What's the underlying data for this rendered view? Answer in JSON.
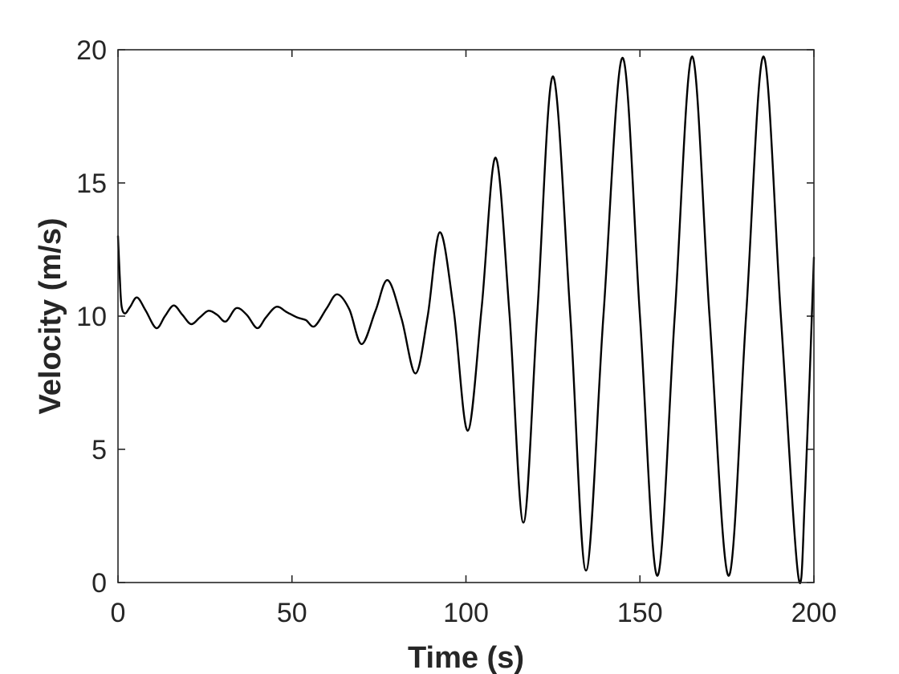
{
  "chart_data": {
    "type": "line",
    "title": "",
    "xlabel": "Time (s)",
    "ylabel": "Velocity (m/s)",
    "xlim": [
      0,
      200
    ],
    "ylim": [
      0,
      20
    ],
    "xticks": [
      0,
      50,
      100,
      150,
      200
    ],
    "yticks": [
      0,
      5,
      10,
      15,
      20
    ],
    "x_tick_labels": [
      "0",
      "50",
      "100",
      "150",
      "200"
    ],
    "y_tick_labels": [
      "0",
      "5",
      "10",
      "15",
      "20"
    ],
    "grid": false,
    "legend": "none",
    "line_color": "#000000",
    "axis_color": "#262626",
    "series": [
      {
        "x": [
          0,
          0.5,
          1,
          2,
          3.5,
          5.5,
          8,
          11,
          13.5,
          16,
          18.5,
          21,
          23.5,
          26,
          28.5,
          31,
          34,
          37,
          40,
          42.5,
          45.5,
          48.5,
          51.5,
          54,
          56.5,
          60,
          63,
          66.5,
          70,
          74,
          77.5,
          81.5,
          85.5,
          89,
          92.5,
          96.5,
          100.5,
          104.5,
          108.5,
          112.5,
          116.5,
          120.5,
          125,
          130,
          134.5,
          139.5,
          145,
          150,
          155,
          160,
          165,
          170,
          175.5,
          180.5,
          185.5,
          190.5,
          195.5,
          197.5,
          200
        ],
        "y": [
          13,
          11.5,
          10.4,
          10.1,
          10.35,
          10.7,
          10.2,
          9.55,
          10,
          10.4,
          10.05,
          9.7,
          9.95,
          10.2,
          10.05,
          9.8,
          10.3,
          10.05,
          9.55,
          9.95,
          10.35,
          10.15,
          9.95,
          9.85,
          9.62,
          10.3,
          10.82,
          10.25,
          8.95,
          10.2,
          11.35,
          9.9,
          7.85,
          10,
          13.15,
          10.2,
          5.7,
          10.3,
          15.95,
          10.1,
          2.25,
          10.1,
          19,
          10,
          0.45,
          10,
          19.7,
          10,
          0.25,
          10,
          19.75,
          10,
          0.25,
          10,
          19.75,
          10,
          0.25,
          3.5,
          12.2
        ]
      }
    ]
  }
}
